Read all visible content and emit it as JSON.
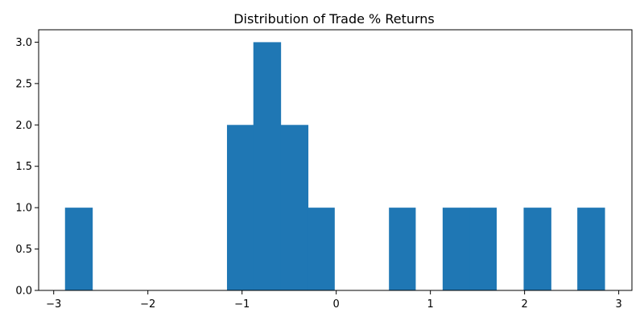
{
  "chart_data": {
    "type": "bar",
    "title": "Distribution of Trade % Returns",
    "xlabel": "",
    "ylabel": "",
    "bar_color": "#1f77b4",
    "bins": [
      {
        "x0": -2.88,
        "x1": -2.59,
        "count": 1
      },
      {
        "x0": -2.59,
        "x1": -2.31,
        "count": 0
      },
      {
        "x0": -2.31,
        "x1": -2.02,
        "count": 0
      },
      {
        "x0": -2.02,
        "x1": -1.73,
        "count": 0
      },
      {
        "x0": -1.73,
        "x1": -1.45,
        "count": 0
      },
      {
        "x0": -1.45,
        "x1": -1.16,
        "count": 0
      },
      {
        "x0": -1.16,
        "x1": -0.88,
        "count": 2
      },
      {
        "x0": -0.88,
        "x1": -0.59,
        "count": 3
      },
      {
        "x0": -0.59,
        "x1": -0.3,
        "count": 2
      },
      {
        "x0": -0.3,
        "x1": -0.02,
        "count": 1
      },
      {
        "x0": -0.02,
        "x1": 0.27,
        "count": 0
      },
      {
        "x0": 0.27,
        "x1": 0.56,
        "count": 0
      },
      {
        "x0": 0.56,
        "x1": 0.84,
        "count": 1
      },
      {
        "x0": 0.84,
        "x1": 1.13,
        "count": 0
      },
      {
        "x0": 1.13,
        "x1": 1.42,
        "count": 1
      },
      {
        "x0": 1.42,
        "x1": 1.7,
        "count": 1
      },
      {
        "x0": 1.7,
        "x1": 1.99,
        "count": 0
      },
      {
        "x0": 1.99,
        "x1": 2.28,
        "count": 1
      },
      {
        "x0": 2.28,
        "x1": 2.56,
        "count": 0
      },
      {
        "x0": 2.56,
        "x1": 2.85,
        "count": 1
      }
    ],
    "xlim": [
      -3.16,
      3.14
    ],
    "ylim": [
      0,
      3.15
    ],
    "xticks": [
      {
        "value": -3,
        "label": "−3"
      },
      {
        "value": -2,
        "label": "−2"
      },
      {
        "value": -1,
        "label": "−1"
      },
      {
        "value": 0,
        "label": "0"
      },
      {
        "value": 1,
        "label": "1"
      },
      {
        "value": 2,
        "label": "2"
      },
      {
        "value": 3,
        "label": "3"
      }
    ],
    "yticks": [
      {
        "value": 0,
        "label": "0.0"
      },
      {
        "value": 0.5,
        "label": "0.5"
      },
      {
        "value": 1,
        "label": "1.0"
      },
      {
        "value": 1.5,
        "label": "1.5"
      },
      {
        "value": 2,
        "label": "2.0"
      },
      {
        "value": 2.5,
        "label": "2.5"
      },
      {
        "value": 3,
        "label": "3.0"
      }
    ],
    "grid": false
  }
}
